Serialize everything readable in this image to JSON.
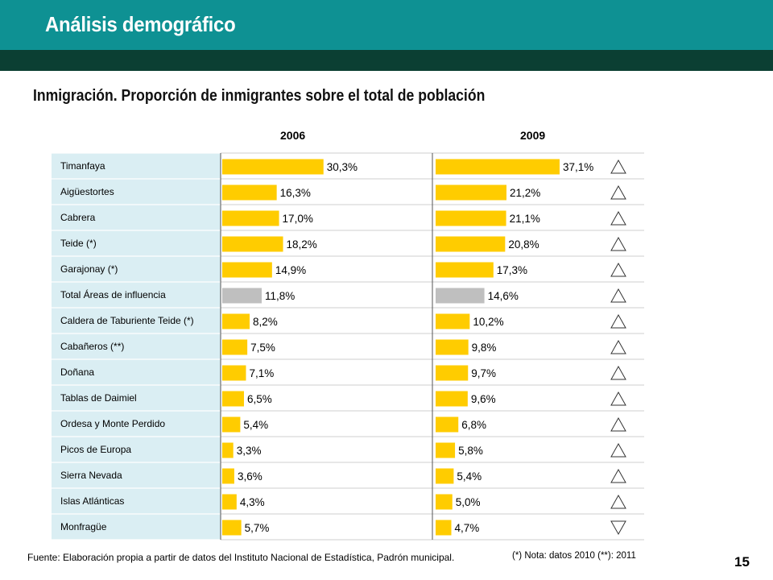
{
  "header": {
    "title": "Análisis demográfico"
  },
  "chart_title": "Inmigración. Proporción de inmigrantes sobre el total de población",
  "column_labels": [
    "2006",
    "2009"
  ],
  "footer": {
    "source": "Fuente: Elaboración propia a partir de datos del Instituto Nacional de Estadística, Padrón municipal.",
    "note": "(*) Nota: datos 2010 (**): 2011",
    "page_number": "15"
  },
  "colors": {
    "bar": "#FFCC00",
    "highlight_bar": "#BFBFBF",
    "label_bg": "#DAEEF3",
    "teal": "#0E9193",
    "dark_green": "#0B3F33"
  },
  "chart_data": {
    "type": "bar",
    "orientation": "horizontal",
    "categories": [
      "Timanfaya",
      "Aigüestortes",
      "Cabrera",
      "Teide (*)",
      "Garajonay (*)",
      "Total Áreas de influencia",
      "Caldera de Taburiente Teide (*)",
      "Cabañeros (**)",
      "Doñana",
      "Tablas de Daimiel",
      "Ordesa y Monte Perdido",
      "Picos de Europa",
      "Sierra Nevada",
      "Islas Atlánticas",
      "Monfragüe"
    ],
    "series": [
      {
        "name": "2006",
        "values": [
          30.3,
          16.3,
          17.0,
          18.2,
          14.9,
          11.8,
          8.2,
          7.5,
          7.1,
          6.5,
          5.4,
          3.3,
          3.6,
          4.3,
          5.7
        ],
        "labels": [
          "30,3%",
          "16,3%",
          "17,0%",
          "18,2%",
          "14,9%",
          "11,8%",
          "8,2%",
          "7,5%",
          "7,1%",
          "6,5%",
          "5,4%",
          "3,3%",
          "3,6%",
          "4,3%",
          "5,7%"
        ]
      },
      {
        "name": "2009",
        "values": [
          37.1,
          21.2,
          21.1,
          20.8,
          17.3,
          14.6,
          10.2,
          9.8,
          9.7,
          9.6,
          6.8,
          5.8,
          5.4,
          5.0,
          4.7
        ],
        "labels": [
          "37,1%",
          "21,2%",
          "21,1%",
          "20,8%",
          "17,3%",
          "14,6%",
          "10,2%",
          "9,8%",
          "9,7%",
          "9,6%",
          "6,8%",
          "5,8%",
          "5,4%",
          "5,0%",
          "4,7%"
        ]
      }
    ],
    "highlight_category": "Total Áreas de influencia",
    "trend": [
      "up",
      "up",
      "up",
      "up",
      "up",
      "up",
      "up",
      "up",
      "up",
      "up",
      "up",
      "up",
      "up",
      "up",
      "down"
    ],
    "xlim": [
      0,
      40
    ],
    "legend": "none",
    "grid": false
  }
}
